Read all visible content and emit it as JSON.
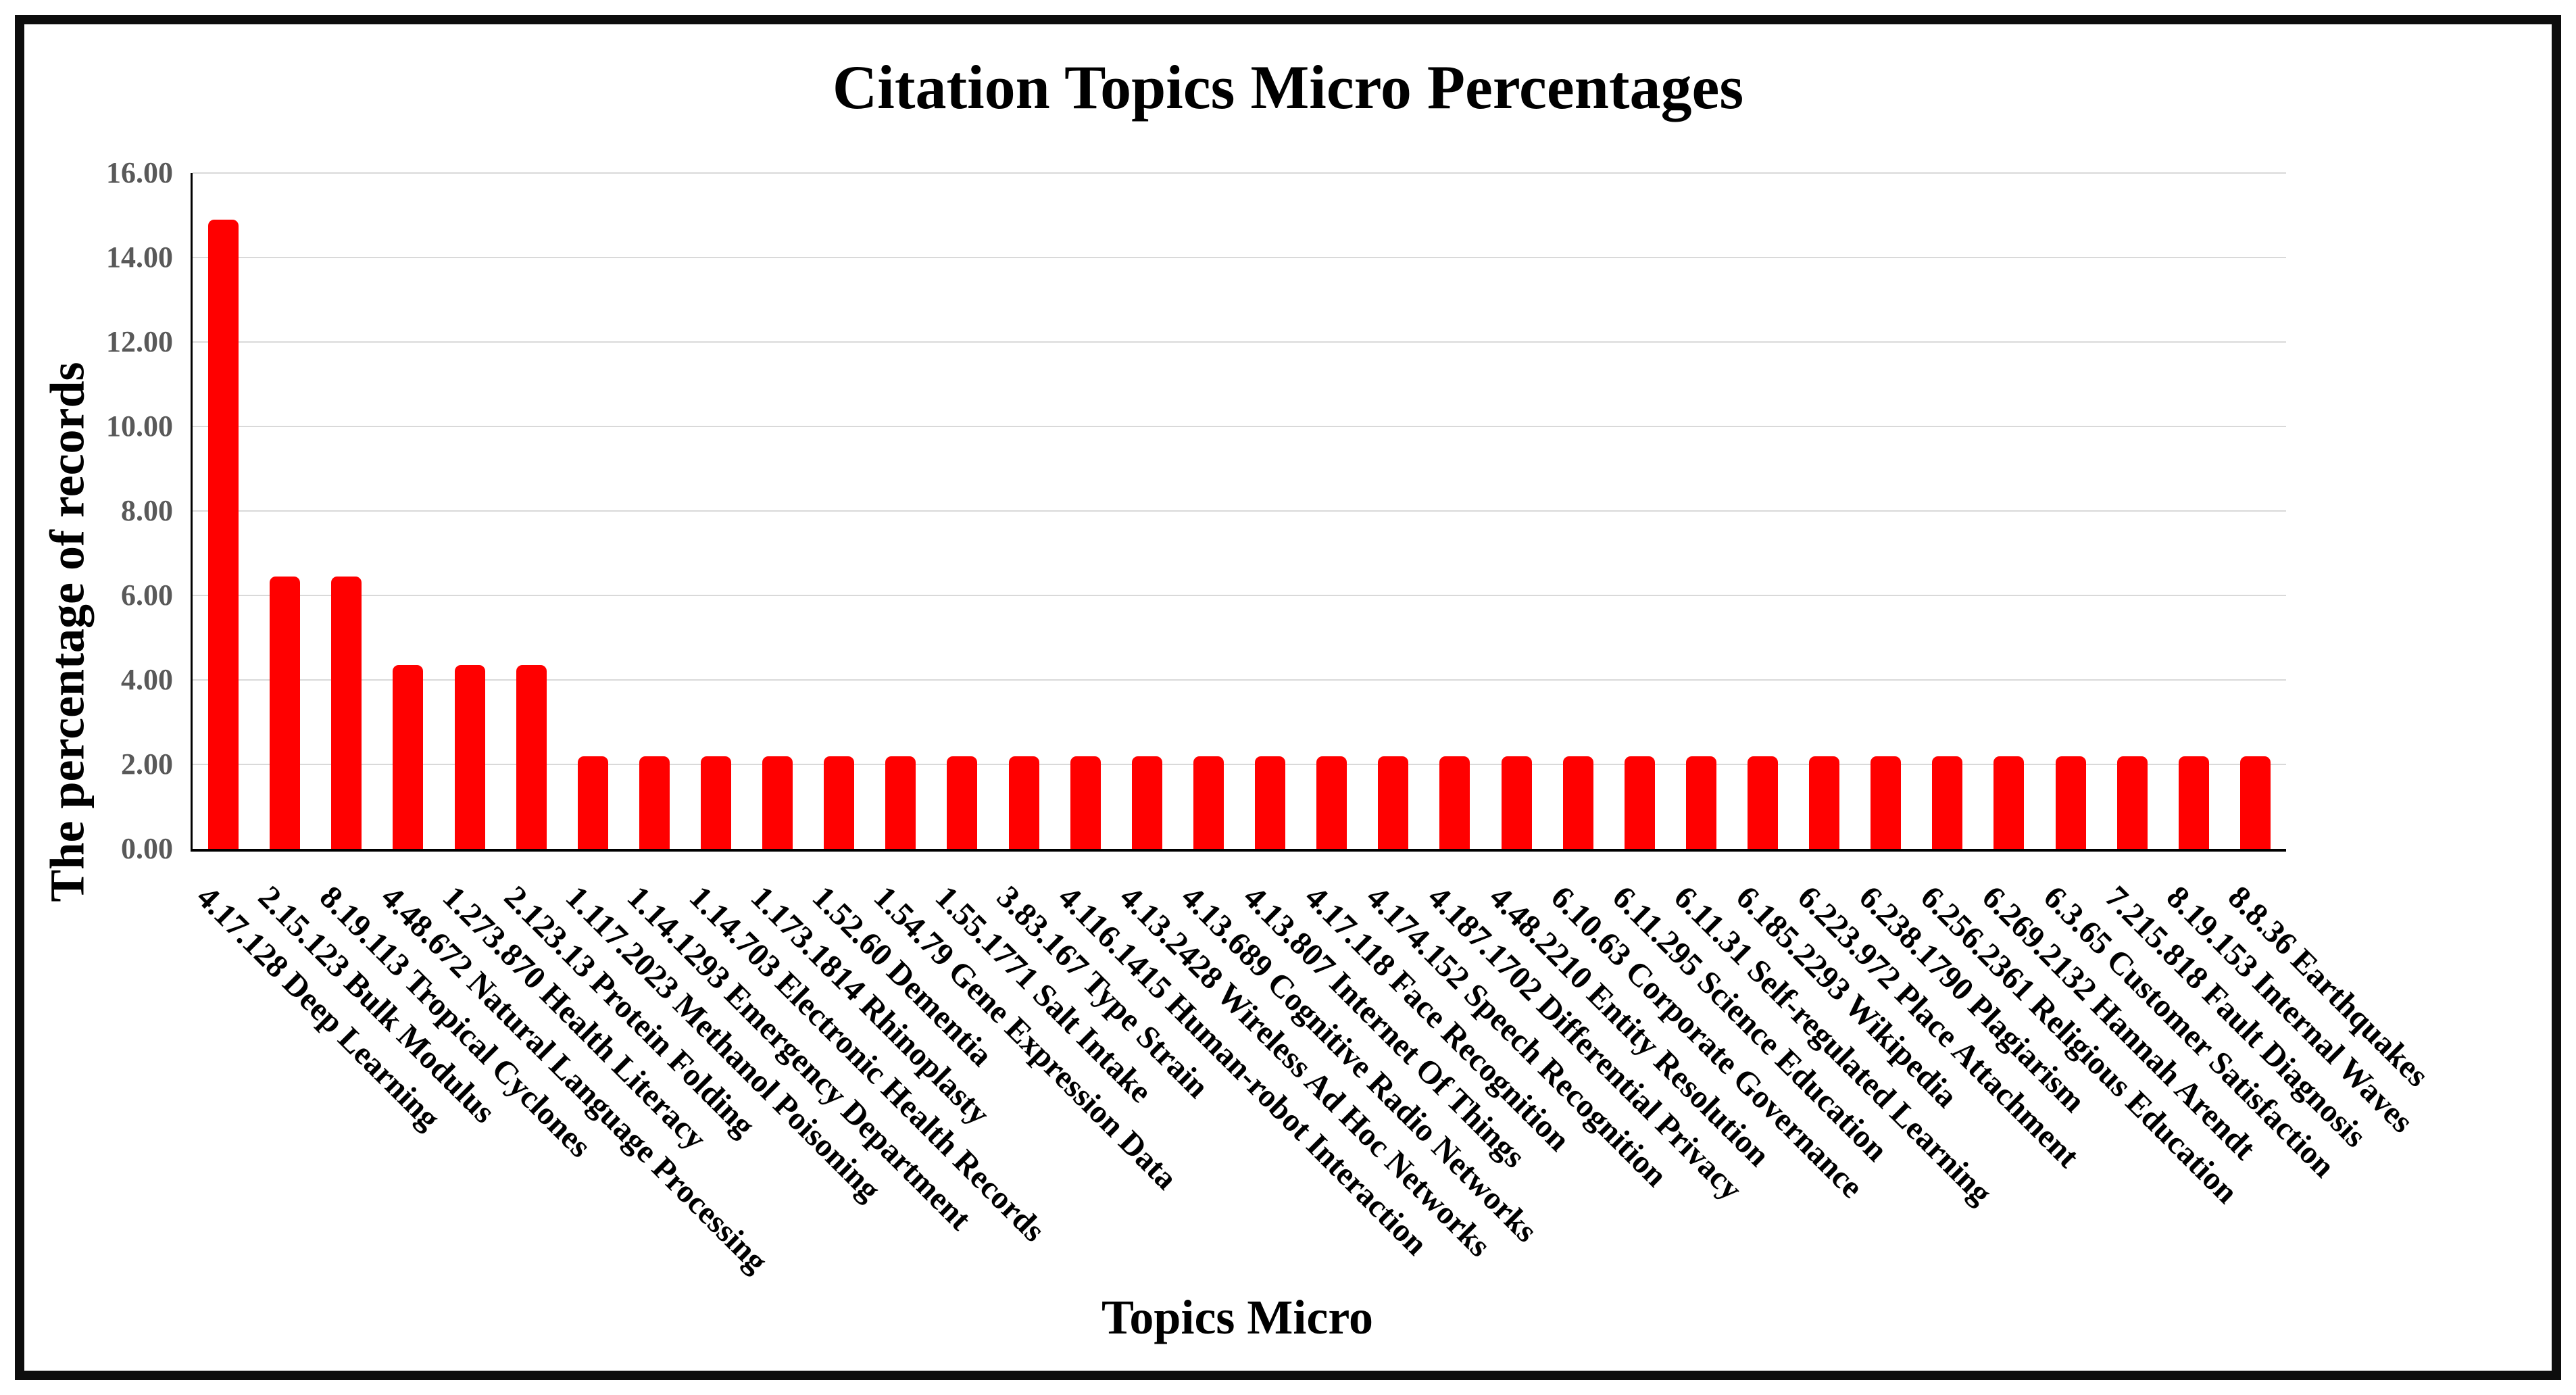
{
  "chart_data": {
    "type": "bar",
    "title": "Citation Topics Micro Percentages",
    "xlabel": "Topics Micro",
    "ylabel": "The percentage of records",
    "ylim": [
      0,
      16
    ],
    "ytick_step": 2,
    "ytick_labels": [
      "0.00",
      "2.00",
      "4.00",
      "6.00",
      "8.00",
      "10.00",
      "12.00",
      "14.00",
      "16.00"
    ],
    "grid": true,
    "legend_position": "none",
    "bar_color": "#ff0000",
    "gridline_color": "#d9d9d9",
    "tick_label_color": "#595959",
    "axis_color": "#000000",
    "categories": [
      "4.17.128 Deep Learning",
      "2.15.123 Bulk Modulus",
      "8.19.113 Tropical Cyclones",
      "4.48.672 Natural Language Processing",
      "1.273.870 Health Literacy",
      "2.123.13 Protein Folding",
      "1.117.2023 Methanol Poisoning",
      "1.14.1293 Emergency Department",
      "1.14.703 Electronic Health Records",
      "1.173.1814 Rhinoplasty",
      "1.52.60 Dementia",
      "1.54.79 Gene Expression Data",
      "1.55.1771 Salt Intake",
      "3.83.167 Type Strain",
      "4.116.1415 Human-robot Interaction",
      "4.13.2428 Wireless Ad Hoc Networks",
      "4.13.689 Cognitive Radio Networks",
      "4.13.807 Internet Of Things",
      "4.17.118 Face Recognition",
      "4.174.152 Speech Recognition",
      "4.187.1702 Differential Privacy",
      "4.48.2210 Entity Resolution",
      "6.10.63 Corporate Governance",
      "6.11.295 Science Education",
      "6.11.31 Self-regulated Learning",
      "6.185.2293 Wikipedia",
      "6.223.972 Place Attachment",
      "6.238.1790 Plagiarism",
      "6.256.2361 Religious Education",
      "6.269.2132 Hannah Arendt",
      "6.3.65 Customer Satisfaction",
      "7.215.818 Fault Diagnosis",
      "8.19.153 Internal Waves",
      "8.8.36 Earthquakes"
    ],
    "values": [
      14.9,
      6.45,
      6.45,
      4.35,
      4.35,
      4.35,
      2.2,
      2.2,
      2.2,
      2.2,
      2.2,
      2.2,
      2.2,
      2.2,
      2.2,
      2.2,
      2.2,
      2.2,
      2.2,
      2.2,
      2.2,
      2.2,
      2.2,
      2.2,
      2.2,
      2.2,
      2.2,
      2.2,
      2.2,
      2.2,
      2.2,
      2.2,
      2.2,
      2.2
    ]
  }
}
